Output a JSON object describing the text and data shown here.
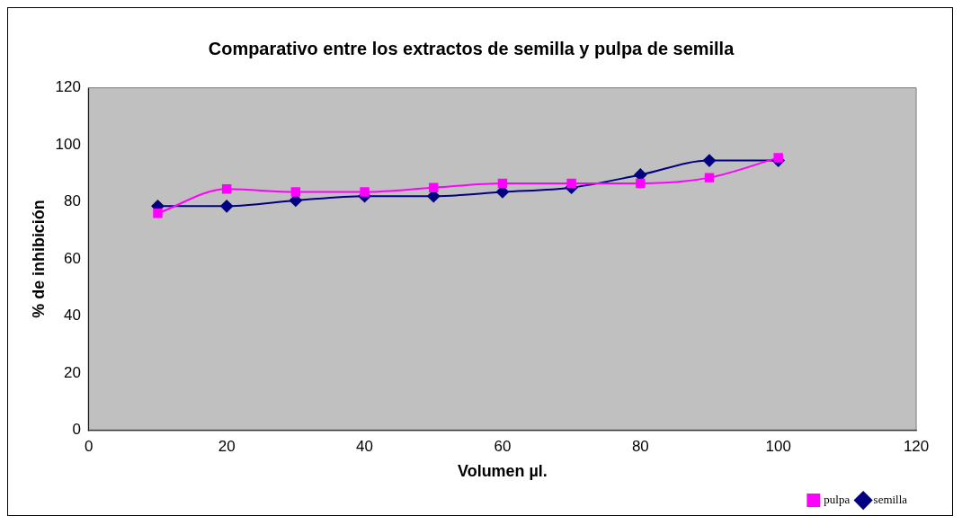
{
  "chart_data": {
    "type": "line",
    "title": "Comparativo entre los extractos de semilla y pulpa de semilla",
    "xlabel": "Volumen µl.",
    "ylabel": "% de inhibición",
    "x": [
      10,
      20,
      30,
      40,
      50,
      60,
      70,
      80,
      90,
      100
    ],
    "series": [
      {
        "name": "semilla",
        "color": "#000080",
        "marker": "diamond",
        "values": [
          78.5,
          78.5,
          80.5,
          82,
          82,
          83.5,
          85,
          89.5,
          94.5,
          94.5
        ]
      },
      {
        "name": "pulpa",
        "color": "#ff00ff",
        "marker": "square",
        "values": [
          76,
          84.5,
          83.5,
          83.5,
          85,
          86.5,
          86.5,
          86.5,
          88.5,
          95.5
        ]
      }
    ],
    "xlim": [
      0,
      120
    ],
    "xticks": [
      0,
      20,
      40,
      60,
      80,
      100,
      120
    ],
    "ylim": [
      0,
      120
    ],
    "yticks": [
      0,
      20,
      40,
      60,
      80,
      100,
      120
    ],
    "grid": false,
    "legend": "bottom right"
  }
}
